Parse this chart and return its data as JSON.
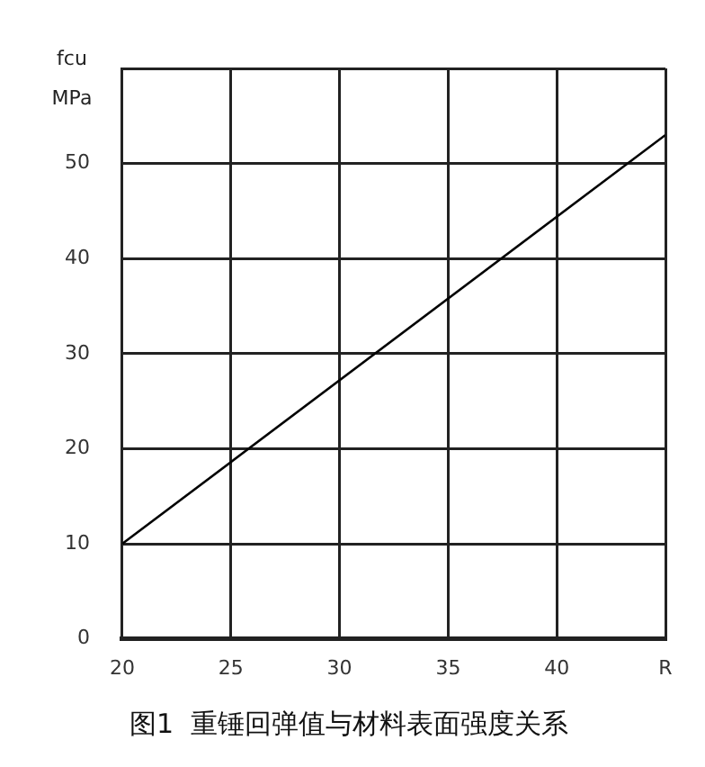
{
  "chart_data": {
    "type": "line",
    "title": "图1  重锤回弹值与材料表面强度关系",
    "ylabel": "fcu MPa",
    "x": [
      20,
      45
    ],
    "series": [
      {
        "color": "#000000",
        "values": [
          10,
          53
        ]
      }
    ],
    "xlim": [
      20,
      45
    ],
    "xticks": [
      20,
      25,
      30,
      35,
      40,
      {
        "value": 45,
        "label": "R"
      }
    ],
    "ylim": [
      0,
      60
    ],
    "yticks": [
      0,
      10,
      20,
      30,
      40,
      50,
      {
        "value": 60,
        "label": null
      }
    ],
    "grid": true,
    "legend": false,
    "marker": "none",
    "line_style": "solid"
  }
}
